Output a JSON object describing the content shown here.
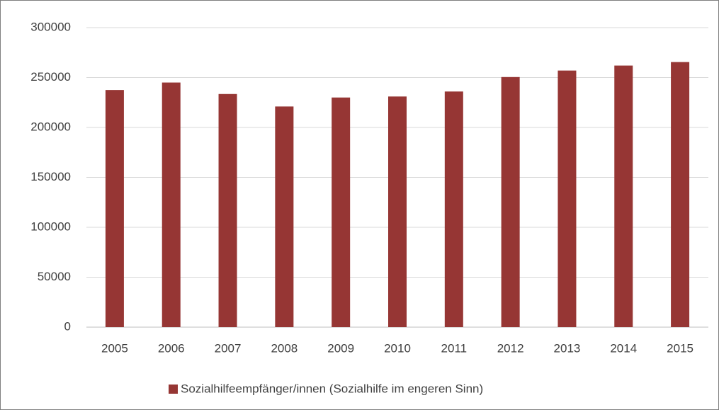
{
  "chart_data": {
    "type": "bar",
    "categories": [
      "2005",
      "2006",
      "2007",
      "2008",
      "2009",
      "2010",
      "2011",
      "2012",
      "2013",
      "2014",
      "2015"
    ],
    "series": [
      {
        "name": "Sozialhilfeempfänger/innen (Sozialhilfe im engeren Sinn)",
        "color": "#963634",
        "values": [
          237500,
          245000,
          233500,
          221000,
          230000,
          231000,
          236000,
          250500,
          257000,
          262000,
          265500
        ]
      }
    ],
    "ylim": [
      0,
      300000
    ],
    "yticks": [
      0,
      50000,
      100000,
      150000,
      200000,
      250000,
      300000
    ],
    "grid": true,
    "legend": "bottom"
  }
}
